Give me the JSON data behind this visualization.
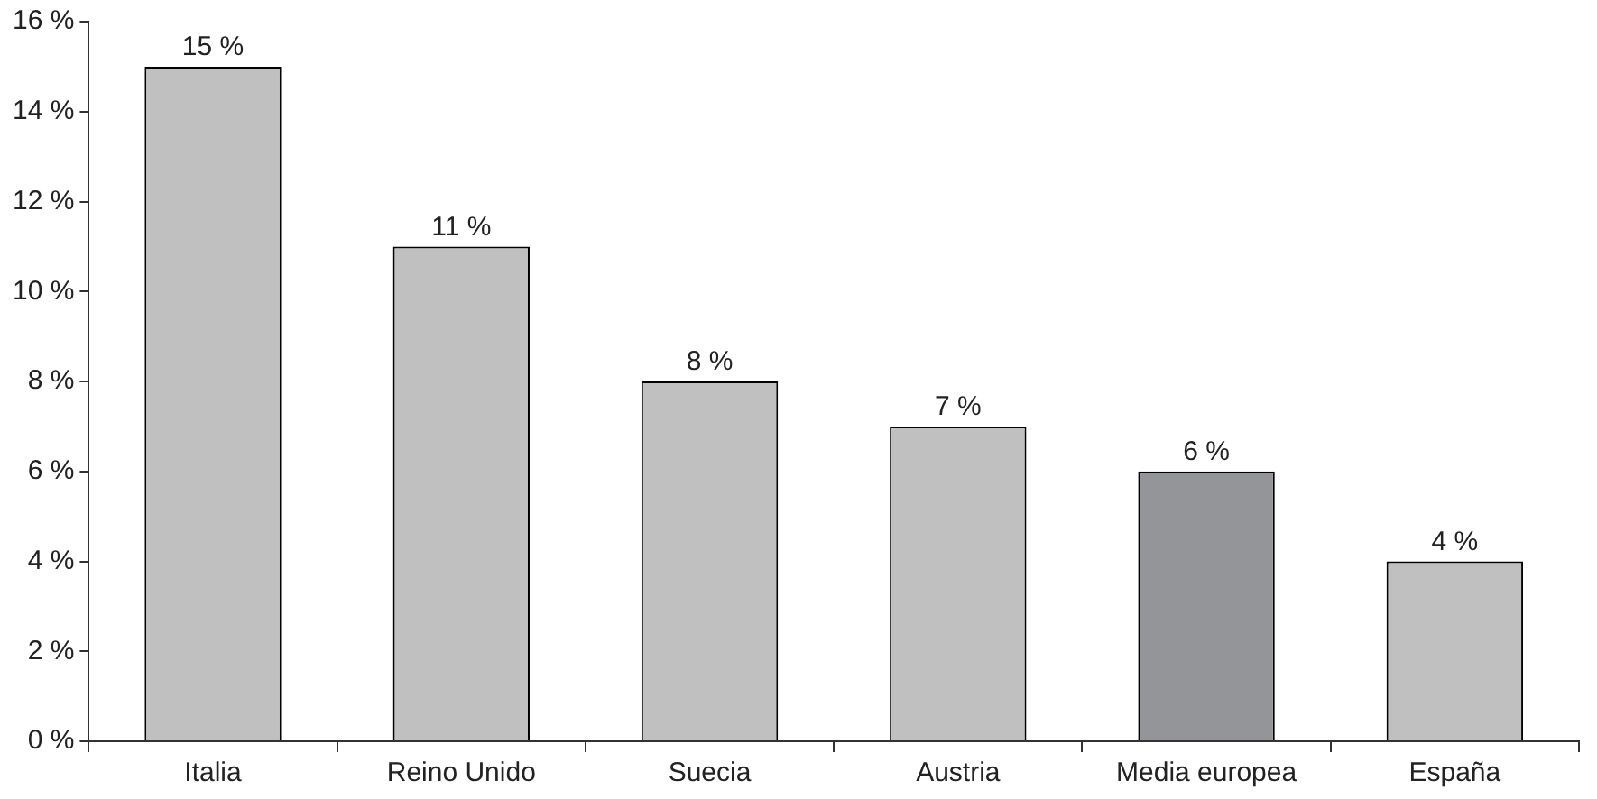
{
  "chart_data": {
    "type": "bar",
    "categories": [
      "Italia",
      "Reino Unido",
      "Suecia",
      "Austria",
      "Media europea",
      "España"
    ],
    "values": [
      15,
      11,
      8,
      7,
      6,
      4
    ],
    "colors": [
      "#c0c0c0",
      "#c0c0c0",
      "#c0c0c0",
      "#c0c0c0",
      "#939598",
      "#c0c0c0"
    ],
    "value_labels": [
      "15 %",
      "11 %",
      "8 %",
      "7 %",
      "6 %",
      "4 %"
    ],
    "ylim": [
      0,
      16
    ],
    "yticks": [
      {
        "value": 0,
        "label": "0 %"
      },
      {
        "value": 2,
        "label": "2 %"
      },
      {
        "value": 4,
        "label": "4 %"
      },
      {
        "value": 6,
        "label": "6 %"
      },
      {
        "value": 8,
        "label": "8 %"
      },
      {
        "value": 10,
        "label": "10 %"
      },
      {
        "value": 12,
        "label": "12 %"
      },
      {
        "value": 14,
        "label": "14 %"
      },
      {
        "value": 16,
        "label": "16 %"
      }
    ],
    "grid": false,
    "legend": false
  }
}
